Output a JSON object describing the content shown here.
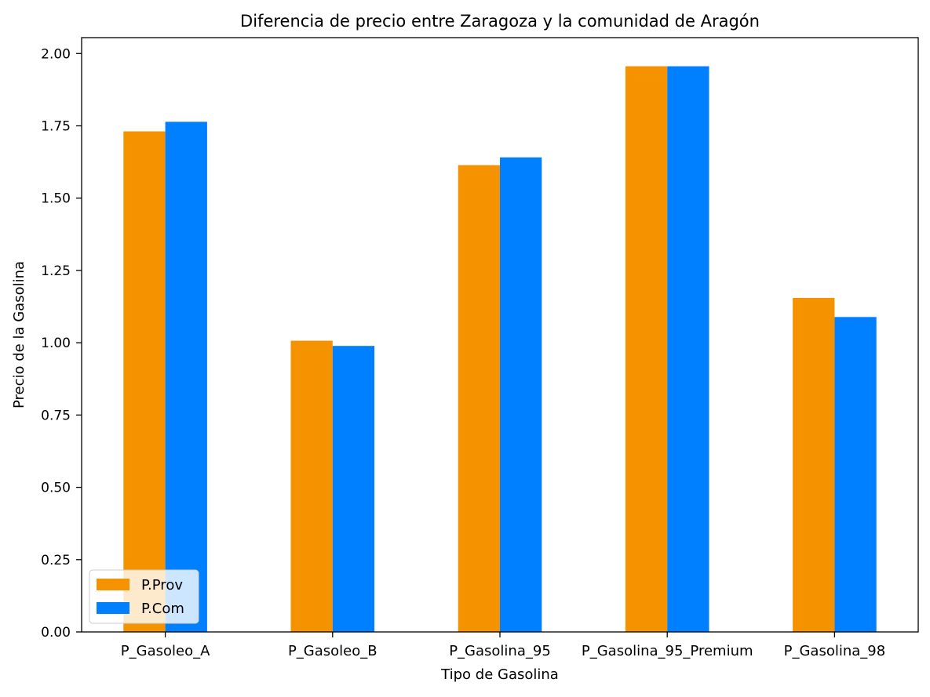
{
  "chart_data": {
    "type": "bar",
    "title": "Diferencia de precio entre Zaragoza y la comunidad de Aragón",
    "xlabel": "Tipo de Gasolina",
    "ylabel": "Precio de la Gasolina",
    "categories": [
      "P_Gasoleo_A",
      "P_Gasoleo_B",
      "P_Gasolina_95",
      "P_Gasolina_95_Premium",
      "P_Gasolina_98"
    ],
    "series": [
      {
        "name": "P.Prov",
        "color": "#f59200",
        "values": [
          1.731,
          1.007,
          1.614,
          1.956,
          1.155
        ]
      },
      {
        "name": "P.Com",
        "color": "#0080ff",
        "values": [
          1.764,
          0.989,
          1.641,
          1.956,
          1.089
        ]
      }
    ],
    "ylim": [
      0,
      2.055
    ],
    "yticks": [
      0.0,
      0.25,
      0.5,
      0.75,
      1.0,
      1.25,
      1.5,
      1.75,
      2.0
    ],
    "ytick_labels": [
      "0.00",
      "0.25",
      "0.50",
      "0.75",
      "1.00",
      "1.25",
      "1.50",
      "1.75",
      "2.00"
    ],
    "legend_position": "lower-left",
    "grid": false
  }
}
